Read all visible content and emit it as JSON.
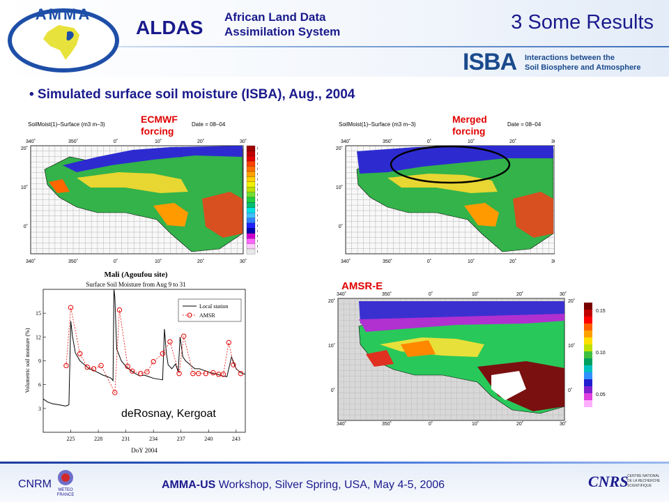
{
  "header": {
    "aldas": "ALDAS",
    "subtitle": "African Land Data\nAssimilation System",
    "title": "3 Some Results",
    "isba": "ISBA",
    "isba_text": "Interactions between the\nSoil Biosphere and Atmosphere",
    "logo_text": "AMMA"
  },
  "bullet": "• Simulated surface soil moisture (ISBA), Aug., 2004",
  "maps": {
    "left": {
      "title": "SoilMoist(1)–Surface (m3 m–3)",
      "date": "Date = 08–04",
      "label": "ECMWF\nforcing"
    },
    "right": {
      "title": "SoilMoist(1)–Surface (m3 m–3)",
      "date": "Date = 08–04",
      "label": "Merged\nforcing"
    },
    "amsr": {
      "label": "AMSR-E"
    },
    "lon_ticks": [
      "340˚",
      "350˚",
      "0˚",
      "10˚",
      "20˚",
      "30˚"
    ],
    "lat_ticks": [
      "20˚",
      "10˚",
      "0˚"
    ],
    "colorbar": [
      "0.40",
      "0.38",
      "0.36",
      "0.34",
      "0.32",
      "0.30",
      "0.28",
      "0.26",
      "0.24",
      "0.22",
      "0.20",
      "0.18",
      "0.16",
      "0.14",
      "0.12",
      "0.10",
      "0.08",
      "0.06",
      "0.04",
      "0.02",
      "0.00"
    ],
    "amsr_lon": [
      "340˚",
      "350˚",
      "0˚",
      "10˚",
      "20˚",
      "30˚"
    ],
    "amsr_lat": [
      "20˚",
      "10˚",
      "0˚"
    ],
    "amsr_colorbar": [
      "0.15",
      "0.10",
      "0.05"
    ]
  },
  "chart": {
    "title": "Mali (Agoufou site)",
    "subtitle": "Surface Soil Moisture from Aug 9 to 31",
    "ylabel": "Volumetric soil moisture (%)",
    "xlabel": "DoY 2004",
    "legend": [
      "Local station",
      "AMSR"
    ],
    "caption": "deRosnay, Kergoat"
  },
  "chart_data": {
    "type": "line",
    "title": "Mali (Agoufou site)",
    "xlabel": "DoY 2004",
    "ylabel": "Volumetric soil moisture (%)",
    "xlim": [
      222,
      244
    ],
    "ylim": [
      0,
      18
    ],
    "xticks": [
      225,
      228,
      231,
      234,
      237,
      240,
      243
    ],
    "yticks": [
      3,
      6,
      9,
      12,
      15
    ],
    "series": [
      {
        "name": "Local station",
        "x": [
          222,
          222.5,
          223,
          223.5,
          224,
          224.4,
          224.7,
          224.8,
          225,
          225.2,
          225.5,
          226,
          226.5,
          227,
          227.5,
          228,
          228.5,
          229,
          229.4,
          229.6,
          229.7,
          229.8,
          230,
          230.5,
          231,
          231.5,
          232,
          232.5,
          233,
          233.5,
          234,
          234.5,
          235,
          235.2,
          235.4,
          235.6,
          236,
          236.4,
          236.7,
          236.9,
          237.2,
          237.5,
          238,
          238.5,
          239,
          239.5,
          240,
          240.5,
          241,
          241.5,
          242,
          242.5,
          243,
          243.5,
          244
        ],
        "y": [
          4.2,
          3.8,
          3.6,
          3.5,
          3.4,
          3.3,
          3.4,
          3.5,
          14,
          12,
          10,
          9,
          8.5,
          8,
          7.8,
          7.5,
          7.2,
          7,
          6.8,
          6.5,
          18,
          17,
          10.5,
          9,
          8.3,
          7.8,
          7.4,
          7.1,
          7.2,
          7,
          6.8,
          6.7,
          6.6,
          13,
          10,
          8.5,
          8,
          8.6,
          7.6,
          12,
          9.5,
          9,
          8.5,
          8,
          8,
          7.8,
          7.6,
          7.4,
          7.3,
          7.1,
          7,
          9.5,
          8,
          7.5,
          7.3
        ]
      },
      {
        "name": "AMSR",
        "x": [
          224.5,
          225,
          226,
          226.8,
          227.5,
          228.3,
          229.8,
          230.3,
          231.2,
          231.7,
          232.6,
          233.3,
          234,
          235,
          235.8,
          236.8,
          237.3,
          238.3,
          238.9,
          239.7,
          240.5,
          241.1,
          241.6,
          242.2,
          242.7,
          243.5
        ],
        "y": [
          8.4,
          15.7,
          9.9,
          8.2,
          8,
          8.4,
          5,
          15.4,
          8.3,
          7.7,
          7.4,
          7.6,
          8.9,
          9.9,
          11.4,
          7.4,
          12.1,
          7.4,
          7.4,
          7.4,
          7.5,
          7.3,
          7.3,
          11.3,
          8.5,
          7.4
        ]
      }
    ]
  },
  "footer": {
    "cnrm": "CNRM",
    "meteo": "METEO\nFRANCE",
    "workshop_bold": "AMMA-US",
    "workshop_rest": " Workshop, Silver Spring, USA, May 4-5, 2006",
    "cnrs": "CNRS",
    "cnrs_text": "CENTRE NATIONAL\nDE LA RECHERCHE\nSCIENTIFIQUE"
  },
  "colors": {
    "title_blue": "#1a1a8c",
    "label_red": "#e00000"
  }
}
